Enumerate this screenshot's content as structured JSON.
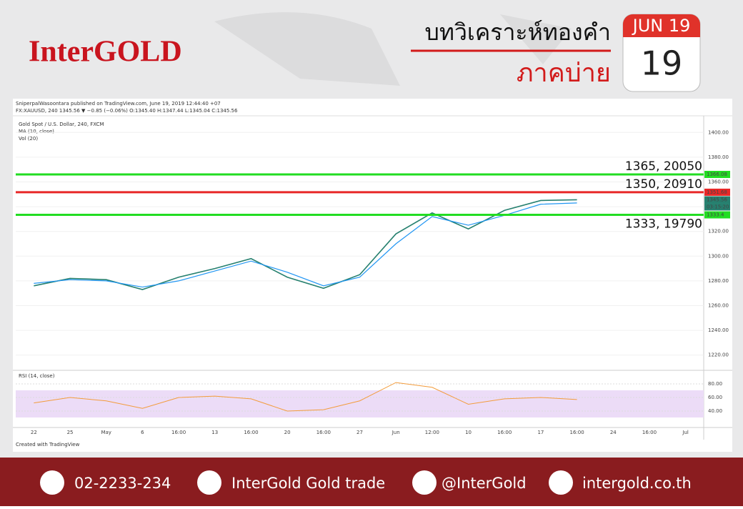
{
  "header": {
    "logo": "InterGOLD",
    "title": "บทวิเคราะห์ทองคำ",
    "subtitle": "ภาคบ่าย",
    "calendar_month": "JUN 19",
    "calendar_day": "19"
  },
  "chart_data": {
    "type": "line",
    "published": "SniperpalWasoontara published on TradingView.com, June 19, 2019 12:44:40 +07",
    "symbol_line": "FX:XAUUSD, 240  1345.56 ▼ −0.85 (−0.06%)  O:1345.40  H:1347.44  L:1345.04  C:1345.56",
    "instrument": "Gold Spot / U.S. Dollar, 240, FXCM",
    "indicators": [
      "MA (10, close)",
      "Vol (20)"
    ],
    "rsi_title": "RSI (14, close)",
    "credit": "Created with TradingView",
    "categories": [
      "22",
      "25",
      "May",
      "6",
      "16:00",
      "13",
      "16:00",
      "20",
      "16:00",
      "27",
      "Jun",
      "12:00",
      "10",
      "16:00",
      "17",
      "16:00",
      "24",
      "16:00",
      "Jul"
    ],
    "series": [
      {
        "name": "Gold Spot",
        "color": "#26806f",
        "values": [
          1276,
          1282,
          1281,
          1273,
          1283,
          1290,
          1298,
          1283,
          1274,
          1285,
          1318,
          1335,
          1322,
          1337,
          1345,
          1345.56,
          null,
          null,
          null
        ]
      },
      {
        "name": "MA (10, close)",
        "color": "#2196f3",
        "values": [
          1278,
          1281,
          1280,
          1275,
          1280,
          1288,
          1296,
          1287,
          1276,
          1283,
          1310,
          1332,
          1325,
          1333,
          1342,
          1343,
          null,
          null,
          null
        ]
      }
    ],
    "ylim": [
      1210,
      1410
    ],
    "yticks": [
      {
        "value": 1220,
        "label": "1220.00"
      },
      {
        "value": 1240,
        "label": "1240.00"
      },
      {
        "value": 1260,
        "label": "1260.00"
      },
      {
        "value": 1280,
        "label": "1280.00"
      },
      {
        "value": 1300,
        "label": "1300.00"
      },
      {
        "value": 1320,
        "label": "1320.00"
      },
      {
        "value": 1340,
        "label": "1340.00"
      },
      {
        "value": 1360,
        "label": "1360.00"
      },
      {
        "value": 1380,
        "label": "1380.00"
      },
      {
        "value": 1400,
        "label": "1400.00"
      }
    ],
    "levels": [
      {
        "value": 1366.08,
        "color": "#22dd22",
        "note": "1365, 20050"
      },
      {
        "value": 1351.68,
        "color": "#e82727",
        "note": "1350, 20910"
      },
      {
        "value": 1333.4,
        "color": "#22dd22",
        "note": "1333, 19790"
      }
    ],
    "last_price": 1345.56,
    "countdown": "03:15:20",
    "rsi": {
      "color": "#f39c3c",
      "values": [
        52,
        60,
        55,
        44,
        60,
        62,
        58,
        40,
        42,
        55,
        82,
        75,
        50,
        58,
        60,
        57,
        null,
        null,
        null
      ],
      "ylim": [
        20,
        90
      ],
      "yticks": [
        {
          "value": 40,
          "label": "40.00"
        },
        {
          "value": 60,
          "label": "60.00"
        },
        {
          "value": 80,
          "label": "80.00"
        }
      ]
    }
  },
  "footer": {
    "phone": "02-2233-234",
    "facebook": "InterGold Gold trade",
    "line": "@InterGold",
    "website": "intergold.co.th"
  }
}
